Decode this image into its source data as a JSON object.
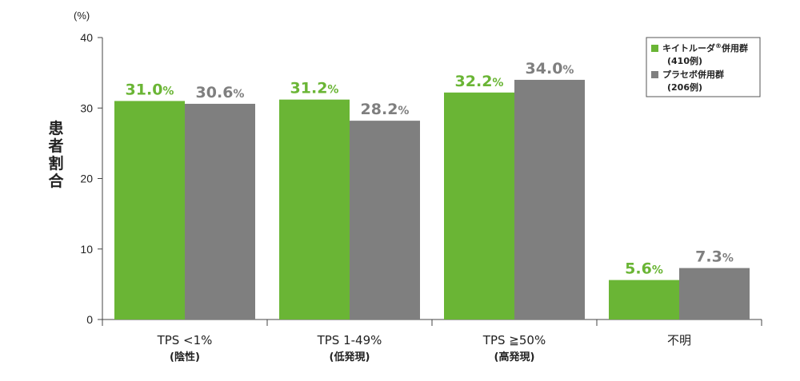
{
  "chart_data": {
    "type": "bar",
    "ylabel": "患者割合",
    "y_unit": "(%)",
    "ylim": [
      0,
      40
    ],
    "yticks": [
      0,
      10,
      20,
      30,
      40
    ],
    "grid": false,
    "legend_position": "top-right",
    "colors": {
      "keytruda": "#6ab535",
      "placebo": "#7f7f7f"
    },
    "categories": [
      {
        "label": "TPS <1%",
        "sublabel": "(陰性)"
      },
      {
        "label": "TPS 1-49%",
        "sublabel": "(低発現)"
      },
      {
        "label": "TPS ≧50%",
        "sublabel": "(高発現)"
      },
      {
        "label": "不明",
        "sublabel": ""
      }
    ],
    "series": [
      {
        "name": "キイトルーダ®併用群",
        "n": "(410例)",
        "color": "#6ab535",
        "values": [
          31.0,
          31.2,
          32.2,
          5.6
        ]
      },
      {
        "name": "プラセボ併用群",
        "n": "(206例)",
        "color": "#7f7f7f",
        "values": [
          30.6,
          28.2,
          34.0,
          7.3
        ]
      }
    ]
  }
}
